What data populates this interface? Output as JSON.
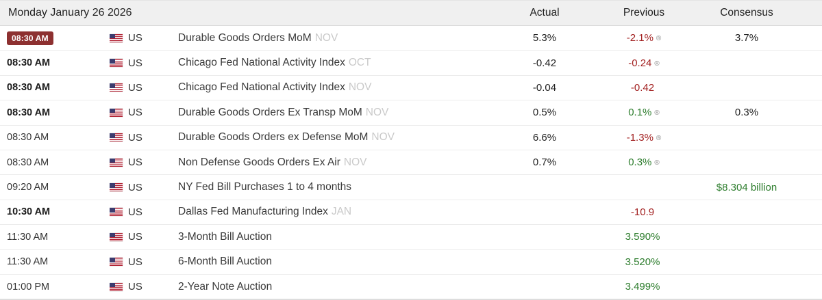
{
  "header": {
    "date": "Monday January 26 2026",
    "columns": [
      "Actual",
      "Previous",
      "Consensus"
    ]
  },
  "colors": {
    "highlight_badge_bg": "#8d3030",
    "negative_red": "#a32222",
    "positive_green": "#2c7c2c",
    "reference_gray": "#c9c9c9",
    "header_bg": "#f0f0f0"
  },
  "rows": [
    {
      "time": "08:30 AM",
      "time_class": "badge",
      "country": "US",
      "event": "Durable Goods Orders MoM",
      "ref": "NOV",
      "actual": "5.3%",
      "previous": "-2.1%",
      "prev_class": "red",
      "revised": "®",
      "consensus": "3.7%"
    },
    {
      "time": "08:30 AM",
      "time_class": "bold",
      "country": "US",
      "event": "Chicago Fed National Activity Index",
      "ref": "OCT",
      "actual": "-0.42",
      "previous": "-0.24",
      "prev_class": "red",
      "revised": "®"
    },
    {
      "time": "08:30 AM",
      "time_class": "bold",
      "country": "US",
      "event": "Chicago Fed National Activity Index",
      "ref": "NOV",
      "actual": "-0.04",
      "previous": "-0.42",
      "prev_class": "red"
    },
    {
      "time": "08:30 AM",
      "time_class": "bold",
      "country": "US",
      "event": "Durable Goods Orders Ex Transp MoM",
      "ref": "NOV",
      "actual": "0.5%",
      "previous": "0.1%",
      "prev_class": "green",
      "revised": "®",
      "consensus": "0.3%"
    },
    {
      "time": "08:30 AM",
      "country": "US",
      "event": "Durable Goods Orders ex Defense MoM",
      "ref": "NOV",
      "actual": "6.6%",
      "previous": "-1.3%",
      "prev_class": "red",
      "revised": "®"
    },
    {
      "time": "08:30 AM",
      "country": "US",
      "event": "Non Defense Goods Orders Ex Air",
      "ref": "NOV",
      "actual": "0.7%",
      "previous": "0.3%",
      "prev_class": "green",
      "revised": "®"
    },
    {
      "time": "09:20 AM",
      "country": "US",
      "event": "NY Fed Bill Purchases 1 to 4 months",
      "consensus": "$8.304 billion",
      "cons_class": "green"
    },
    {
      "time": "10:30 AM",
      "time_class": "bold",
      "country": "US",
      "event": "Dallas Fed Manufacturing Index",
      "ref": "JAN",
      "previous": "-10.9",
      "prev_class": "red"
    },
    {
      "time": "11:30 AM",
      "country": "US",
      "event": "3-Month Bill Auction",
      "previous": "3.590%",
      "prev_class": "green"
    },
    {
      "time": "11:30 AM",
      "country": "US",
      "event": "6-Month Bill Auction",
      "previous": "3.520%",
      "prev_class": "green"
    },
    {
      "time": "01:00 PM",
      "country": "US",
      "event": "2-Year Note Auction",
      "previous": "3.499%",
      "prev_class": "green"
    }
  ]
}
